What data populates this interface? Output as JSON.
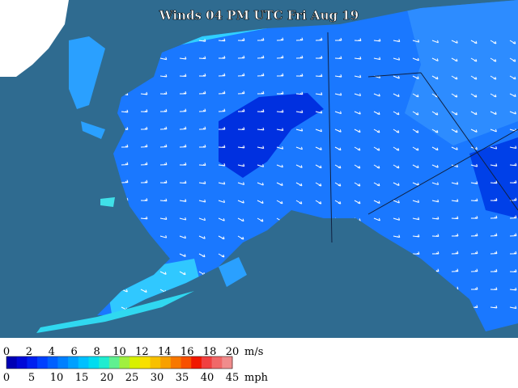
{
  "title": "Winds 04 PM UTC Fri Aug 19",
  "legend": {
    "ms_labels": [
      "0",
      "2",
      "4",
      "6",
      "8",
      "10",
      "12",
      "14",
      "16",
      "18",
      "20"
    ],
    "ms_unit": "m/s",
    "mph_labels": [
      "0",
      "5",
      "10",
      "15",
      "20",
      "25",
      "30",
      "35",
      "40",
      "45"
    ],
    "mph_unit": "mph",
    "colors": [
      "#0000b4",
      "#0008d8",
      "#0020f0",
      "#0040ff",
      "#0060ff",
      "#0080ff",
      "#00a0ff",
      "#00c0ff",
      "#00dcf0",
      "#20ecd0",
      "#60f090",
      "#a0f040",
      "#d8f000",
      "#f8e000",
      "#f8c000",
      "#f8a000",
      "#f87800",
      "#f85000",
      "#f01800",
      "#f04040",
      "#f06868",
      "#f08c8c"
    ]
  }
}
